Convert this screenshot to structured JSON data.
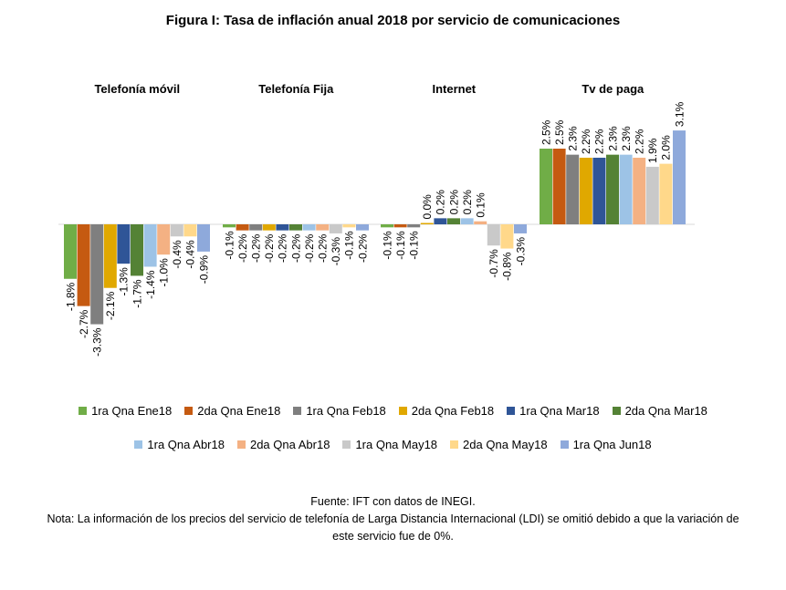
{
  "title": "Figura I: Tasa de inflación anual 2018 por servicio de comunicaciones",
  "chart_data": {
    "type": "bar",
    "categories": [
      "Telefonía móvil",
      "Telefonía Fija",
      "Internet",
      "Tv de paga"
    ],
    "ylim": [
      -3.5,
      3.5
    ],
    "grid": false,
    "legend_position": "bottom",
    "series": [
      {
        "name": "1ra Qna Ene18",
        "color": "#70AD47",
        "values": [
          -1.8,
          -0.1,
          -0.1,
          2.5
        ],
        "labels": [
          "-1.8%",
          "-0.1%",
          "-0.1%",
          "2.5%"
        ]
      },
      {
        "name": "2da Qna Ene18",
        "color": "#C55A11",
        "values": [
          -2.7,
          -0.2,
          -0.1,
          2.5
        ],
        "labels": [
          "-2.7%",
          "-0.2%",
          "-0.1%",
          "2.5%"
        ]
      },
      {
        "name": "1ra Qna Feb18",
        "color": "#7F7F7F",
        "values": [
          -3.3,
          -0.2,
          -0.1,
          2.3
        ],
        "labels": [
          "-3.3%",
          "-0.2%",
          "-0.1%",
          "2.3%"
        ]
      },
      {
        "name": "2da Qna Feb18",
        "color": "#E0A800",
        "values": [
          -2.1,
          -0.2,
          0.0,
          2.2
        ],
        "labels": [
          "-2.1%",
          "-0.2%",
          "0.0%",
          "2.2%"
        ]
      },
      {
        "name": "1ra Qna Mar18",
        "color": "#2F5597",
        "values": [
          -1.3,
          -0.2,
          0.2,
          2.2
        ],
        "labels": [
          "-1.3%",
          "-0.2%",
          "0.2%",
          "2.2%"
        ]
      },
      {
        "name": "2da Qna Mar18",
        "color": "#548235",
        "values": [
          -1.7,
          -0.2,
          0.2,
          2.3
        ],
        "labels": [
          "-1.7%",
          "-0.2%",
          "0.2%",
          "2.3%"
        ]
      },
      {
        "name": "1ra Qna Abr18",
        "color": "#9DC3E6",
        "values": [
          -1.4,
          -0.2,
          0.2,
          2.3
        ],
        "labels": [
          "-1.4%",
          "-0.2%",
          "0.2%",
          "2.3%"
        ]
      },
      {
        "name": "2da Qna Abr18",
        "color": "#F4B183",
        "values": [
          -1.0,
          -0.2,
          0.1,
          2.2
        ],
        "labels": [
          "-1.0%",
          "-0.2%",
          "0.1%",
          "2.2%"
        ]
      },
      {
        "name": "1ra Qna May18",
        "color": "#C9C9C9",
        "values": [
          -0.4,
          -0.3,
          -0.7,
          1.9
        ],
        "labels": [
          "-0.4%",
          "-0.3%",
          "-0.7%",
          "1.9%"
        ]
      },
      {
        "name": "2da Qna May18",
        "color": "#FFD88A",
        "values": [
          -0.4,
          -0.1,
          -0.8,
          2.0
        ],
        "labels": [
          "-0.4%",
          "-0.1%",
          "-0.8%",
          "2.0%"
        ]
      },
      {
        "name": "1ra Qna Jun18",
        "color": "#8EA9DB",
        "values": [
          -0.9,
          -0.2,
          -0.3,
          3.1
        ],
        "labels": [
          "-0.9%",
          "-0.2%",
          "-0.3%",
          "3.1%"
        ]
      }
    ]
  },
  "notes": {
    "source": "Fuente: IFT con datos de INEGI.",
    "note_line1": "Nota: La información de los precios del servicio de telefonía de Larga Distancia Internacional (LDI) se omitió debido a que la variación de",
    "note_line2": "este servicio fue de 0%."
  }
}
